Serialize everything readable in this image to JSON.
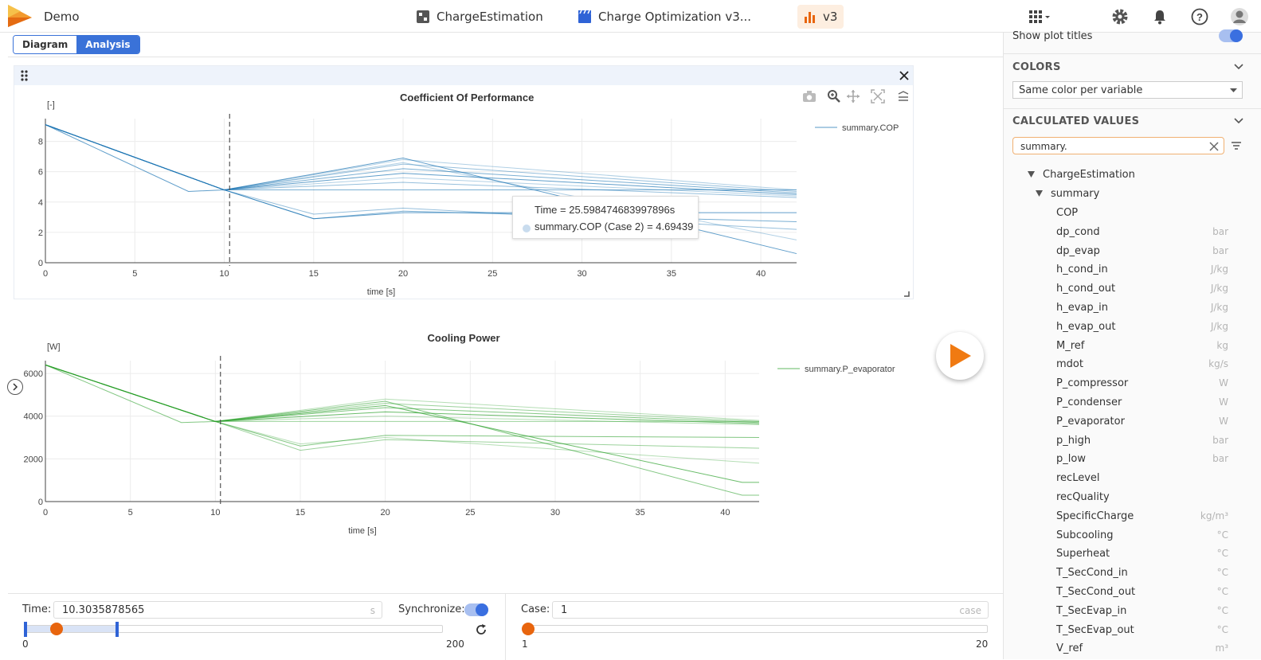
{
  "header": {
    "app_title": "Demo",
    "tabs": [
      {
        "label": "ChargeEstimation",
        "icon": "model-icon"
      },
      {
        "label": "Charge Optimization v3...",
        "icon": "clapper-icon"
      },
      {
        "label": "v3",
        "icon": "bar-chart-icon"
      }
    ]
  },
  "view_toggle": {
    "diagram": "Diagram",
    "analysis": "Analysis"
  },
  "chart1": {
    "title": "Coefficient Of Performance",
    "unit": "[-]",
    "xlabel": "time [s]",
    "legend": "summary.COP",
    "tooltip_time": "Time = 25.598474683997896s",
    "tooltip_value": "summary.COP (Case 2) = 4.69439"
  },
  "chart2": {
    "title": "Cooling Power",
    "unit": "[W]",
    "xlabel": "time [s]",
    "legend": "summary.P_evaporator"
  },
  "chart_data": [
    {
      "type": "line",
      "title": "Coefficient Of Performance",
      "ylabel": "[-]",
      "xlabel": "time [s]",
      "xlim": [
        0,
        42
      ],
      "ylim": [
        0,
        9.5
      ],
      "xticks": [
        0,
        5,
        10,
        15,
        20,
        25,
        30,
        35,
        40
      ],
      "yticks": [
        0,
        2,
        4,
        6,
        8
      ],
      "cursor_x": 10.3,
      "color": "#1f77b4",
      "series": [
        {
          "x": [
            0,
            10,
            20,
            42
          ],
          "y": [
            9.1,
            4.8,
            6.8,
            4.8
          ]
        },
        {
          "x": [
            0,
            10,
            20,
            42
          ],
          "y": [
            9.1,
            4.8,
            6.5,
            4.7
          ]
        },
        {
          "x": [
            0,
            10,
            20,
            42
          ],
          "y": [
            9.1,
            4.8,
            6.2,
            4.6
          ]
        },
        {
          "x": [
            0,
            10,
            20,
            42
          ],
          "y": [
            9.1,
            4.8,
            5.9,
            4.5
          ]
        },
        {
          "x": [
            0,
            10,
            20,
            42
          ],
          "y": [
            9.1,
            4.8,
            5.6,
            4.4
          ]
        },
        {
          "x": [
            0,
            10,
            20,
            42
          ],
          "y": [
            9.1,
            4.8,
            5.3,
            4.3
          ]
        },
        {
          "x": [
            0,
            10,
            42
          ],
          "y": [
            9.1,
            4.8,
            4.8
          ]
        },
        {
          "x": [
            0,
            10,
            20,
            42
          ],
          "y": [
            9.1,
            4.8,
            6.9,
            0.6
          ]
        },
        {
          "x": [
            0,
            10,
            20,
            42
          ],
          "y": [
            9.1,
            4.8,
            6.6,
            1.5
          ]
        },
        {
          "x": [
            0,
            10,
            15,
            20,
            42
          ],
          "y": [
            9.1,
            4.8,
            3.2,
            3.6,
            2.2
          ]
        },
        {
          "x": [
            0,
            10,
            15,
            20,
            42
          ],
          "y": [
            9.1,
            4.8,
            2.9,
            3.4,
            2.7
          ]
        },
        {
          "x": [
            0,
            8,
            10,
            15,
            20,
            42
          ],
          "y": [
            9.1,
            4.7,
            4.8,
            2.9,
            3.3,
            3.3
          ]
        }
      ]
    },
    {
      "type": "line",
      "title": "Cooling Power",
      "ylabel": "[W]",
      "xlabel": "time [s]",
      "xlim": [
        0,
        42
      ],
      "ylim": [
        0,
        6600
      ],
      "xticks": [
        0,
        5,
        10,
        15,
        20,
        25,
        30,
        35,
        40
      ],
      "yticks": [
        0,
        2000,
        4000,
        6000
      ],
      "cursor_x": 10.3,
      "color": "#2ca02c",
      "series": [
        {
          "x": [
            0,
            10,
            20,
            42
          ],
          "y": [
            6400,
            3750,
            4800,
            3800
          ]
        },
        {
          "x": [
            0,
            10,
            20,
            42
          ],
          "y": [
            6400,
            3750,
            4600,
            3750
          ]
        },
        {
          "x": [
            0,
            10,
            20,
            42
          ],
          "y": [
            6400,
            3750,
            4400,
            3700
          ]
        },
        {
          "x": [
            0,
            10,
            20,
            42
          ],
          "y": [
            6400,
            3750,
            4200,
            3650
          ]
        },
        {
          "x": [
            0,
            10,
            20,
            42
          ],
          "y": [
            6400,
            3750,
            4000,
            3600
          ]
        },
        {
          "x": [
            0,
            10,
            42
          ],
          "y": [
            6400,
            3750,
            3750
          ]
        },
        {
          "x": [
            0,
            10,
            20,
            41,
            42
          ],
          "y": [
            6400,
            3750,
            4700,
            300,
            300
          ]
        },
        {
          "x": [
            0,
            10,
            20,
            41,
            42
          ],
          "y": [
            6400,
            3750,
            4500,
            900,
            900
          ]
        },
        {
          "x": [
            0,
            10,
            15,
            20,
            42
          ],
          "y": [
            6400,
            3750,
            2700,
            3000,
            1800
          ]
        },
        {
          "x": [
            0,
            10,
            15,
            20,
            42
          ],
          "y": [
            6400,
            3750,
            2400,
            2900,
            2500
          ]
        },
        {
          "x": [
            0,
            8,
            10,
            15,
            20,
            42
          ],
          "y": [
            6400,
            3700,
            3750,
            2600,
            3100,
            3000
          ]
        }
      ]
    }
  ],
  "controls": {
    "time_label": "Time:",
    "time_value": "10.3035878565",
    "time_unit": "s",
    "sync_label": "Synchronize:",
    "time_min": "0",
    "time_max": "200",
    "time_progress": 0.05,
    "case_label": "Case:",
    "case_value": "1",
    "case_unit": "case",
    "case_min": "1",
    "case_max": "20"
  },
  "sidebar": {
    "show_plot_titles": "Show plot titles",
    "colors_title": "COLORS",
    "color_mode": "Same color per variable",
    "calc_title": "CALCULATED VALUES",
    "search_value": "summary.",
    "tree_root": "ChargeEstimation",
    "tree_child": "summary",
    "variables": [
      {
        "name": "COP",
        "unit": ""
      },
      {
        "name": "dp_cond",
        "unit": "bar"
      },
      {
        "name": "dp_evap",
        "unit": "bar"
      },
      {
        "name": "h_cond_in",
        "unit": "J/kg"
      },
      {
        "name": "h_cond_out",
        "unit": "J/kg"
      },
      {
        "name": "h_evap_in",
        "unit": "J/kg"
      },
      {
        "name": "h_evap_out",
        "unit": "J/kg"
      },
      {
        "name": "M_ref",
        "unit": "kg"
      },
      {
        "name": "mdot",
        "unit": "kg/s"
      },
      {
        "name": "P_compressor",
        "unit": "W"
      },
      {
        "name": "P_condenser",
        "unit": "W"
      },
      {
        "name": "P_evaporator",
        "unit": "W"
      },
      {
        "name": "p_high",
        "unit": "bar"
      },
      {
        "name": "p_low",
        "unit": "bar"
      },
      {
        "name": "recLevel",
        "unit": ""
      },
      {
        "name": "recQuality",
        "unit": ""
      },
      {
        "name": "SpecificCharge",
        "unit": "kg/m³"
      },
      {
        "name": "Subcooling",
        "unit": "°C"
      },
      {
        "name": "Superheat",
        "unit": "°C"
      },
      {
        "name": "T_SecCond_in",
        "unit": "°C"
      },
      {
        "name": "T_SecCond_out",
        "unit": "°C"
      },
      {
        "name": "T_SecEvap_in",
        "unit": "°C"
      },
      {
        "name": "T_SecEvap_out",
        "unit": "°C"
      },
      {
        "name": "V_ref",
        "unit": "m³"
      }
    ]
  }
}
